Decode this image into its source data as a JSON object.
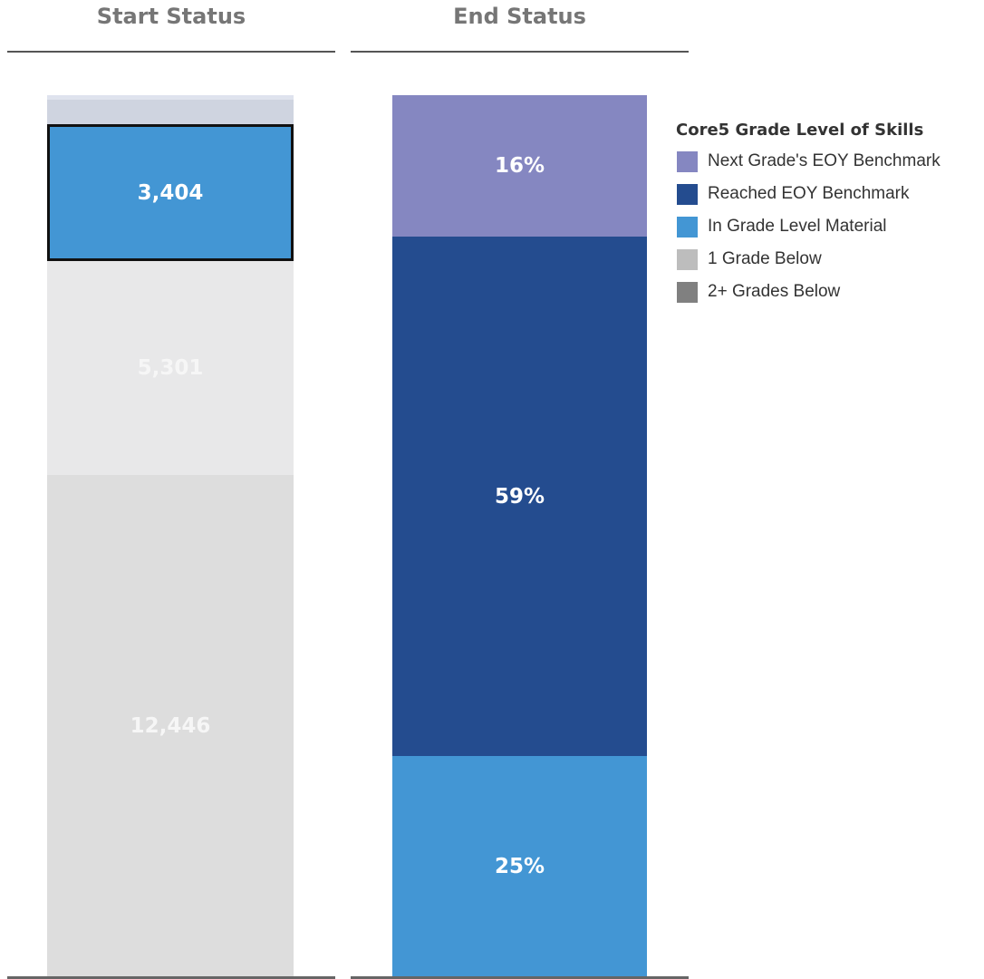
{
  "columns": {
    "start_title": "Start Status",
    "end_title": "End Status"
  },
  "legend": {
    "title": "Core5 Grade Level of Skills",
    "items": [
      {
        "label": "Next Grade's EOY Benchmark",
        "color": "#8587c1"
      },
      {
        "label": "Reached EOY Benchmark",
        "color": "#244c8f"
      },
      {
        "label": "In Grade Level Material",
        "color": "#4396d4"
      },
      {
        "label": "1 Grade Below",
        "color": "#bdbdbd"
      },
      {
        "label": "2+ Grades Below",
        "color": "#808080"
      }
    ]
  },
  "chart_data": {
    "type": "bar",
    "stacked": true,
    "categories": [
      "Start Status",
      "End Status"
    ],
    "bars": [
      {
        "category": "Start Status",
        "segments": [
          {
            "series": "2+ Grades Below",
            "value": 12446,
            "label": "12,446",
            "color": "#dddddd"
          },
          {
            "series": "1 Grade Below",
            "value": 5301,
            "label": "5,301",
            "color": "#e8e8e9"
          },
          {
            "series": "In Grade Level Material",
            "value": 3404,
            "label": "3,404",
            "color": "#4396d4",
            "selected": true
          },
          {
            "series": "Next Grade's EOY Benchmark",
            "value": 600,
            "label": "",
            "color": "#cfd4e0"
          },
          {
            "series": "Next Grade's EOY Benchmark",
            "value": 120,
            "label": "",
            "color": "#dfe3ee"
          }
        ]
      },
      {
        "category": "End Status",
        "segments": [
          {
            "series": "In Grade Level Material",
            "value": 25,
            "label": "25%",
            "color": "#4396d4"
          },
          {
            "series": "Reached EOY Benchmark",
            "value": 59,
            "label": "59%",
            "color": "#244c8f"
          },
          {
            "series": "Next Grade's EOY Benchmark",
            "value": 16,
            "label": "16%",
            "color": "#8587c1"
          }
        ]
      }
    ],
    "legend_position": "right",
    "grid": false
  }
}
